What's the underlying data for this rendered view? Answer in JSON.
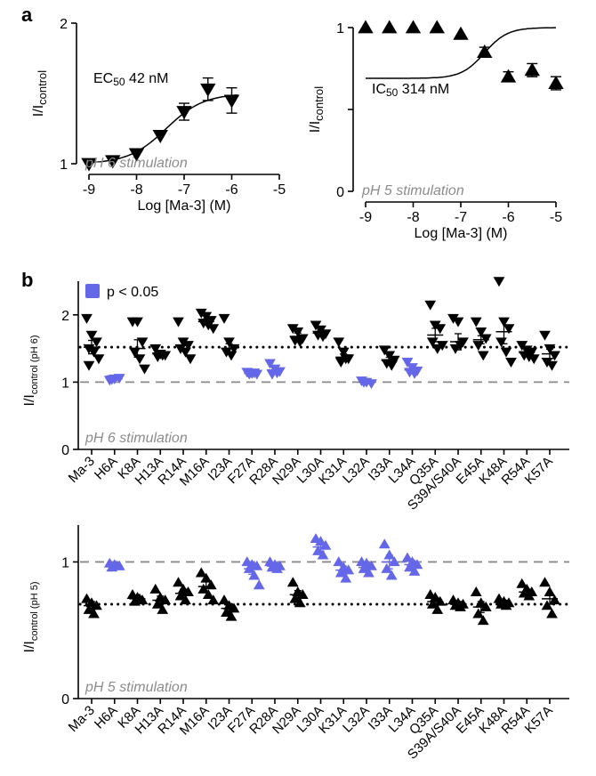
{
  "panel_a_letter": "a",
  "panel_b_letter": "b",
  "colors": {
    "significant": "#6468e8",
    "normal": "#000000",
    "stimulation_text": "#8c8c8c",
    "dashed_line": "#8a8a8a"
  },
  "legend": {
    "text": "p < 0.05",
    "swatch_color": "#6468e8"
  },
  "chart_data": [
    {
      "id": "a-left",
      "type": "scatter",
      "marker": "triangle-down",
      "xlabel": "Log [Ma-3] (M)",
      "ylabel": "I/I",
      "ylabel_sub": "control",
      "xlim": [
        -9,
        -5
      ],
      "ylim": [
        1,
        2
      ],
      "xticks": [
        -9,
        -8,
        -7,
        -6,
        -5
      ],
      "xticklabels": [
        "-9",
        "-8",
        "-7",
        "-6",
        "-5"
      ],
      "yticks": [
        1,
        2
      ],
      "yticklabels": [
        "1",
        "2"
      ],
      "annotation_prefix": "EC",
      "annotation_sub": "50",
      "annotation_value": " 42 nM",
      "stimulation": "pH 6 stimulation",
      "points": [
        {
          "x": -9,
          "y": 1.0,
          "err": 0.01
        },
        {
          "x": -8.5,
          "y": 1.02,
          "err": 0.01
        },
        {
          "x": -8,
          "y": 1.07,
          "err": 0.01
        },
        {
          "x": -7.5,
          "y": 1.2,
          "err": 0.02
        },
        {
          "x": -7,
          "y": 1.37,
          "err": 0.06
        },
        {
          "x": -6.5,
          "y": 1.53,
          "err": 0.08
        },
        {
          "x": -6,
          "y": 1.45,
          "err": 0.09
        }
      ],
      "fit": {
        "bottom": 1.0,
        "top": 1.5,
        "log_ec50": -7.377,
        "hill": 1.1
      }
    },
    {
      "id": "a-right",
      "type": "scatter",
      "marker": "triangle-up",
      "xlabel": "Log [Ma-3] (M)",
      "ylabel": "I/I",
      "ylabel_sub": "control",
      "xlim": [
        -9,
        -5
      ],
      "ylim": [
        0,
        1
      ],
      "xticks": [
        -9,
        -8,
        -7,
        -6,
        -5
      ],
      "xticklabels": [
        "-9",
        "-8",
        "-7",
        "-6",
        "-5"
      ],
      "yticks": [
        0,
        0.5,
        1
      ],
      "yticklabels": [
        "0",
        "",
        "1"
      ],
      "annotation_prefix": "IC",
      "annotation_sub": "50",
      "annotation_value": " 314 nM",
      "stimulation": "pH 5 stimulation",
      "points": [
        {
          "x": -9,
          "y": 1.0,
          "err": 0.01
        },
        {
          "x": -8.5,
          "y": 1.0,
          "err": 0.01
        },
        {
          "x": -8,
          "y": 1.0,
          "err": 0.01
        },
        {
          "x": -7.5,
          "y": 1.0,
          "err": 0.01
        },
        {
          "x": -7,
          "y": 0.96,
          "err": 0.02
        },
        {
          "x": -6.5,
          "y": 0.85,
          "err": 0.03
        },
        {
          "x": -6,
          "y": 0.7,
          "err": 0.03
        },
        {
          "x": -5.5,
          "y": 0.74,
          "err": 0.04
        },
        {
          "x": -5,
          "y": 0.66,
          "err": 0.04
        }
      ],
      "fit": {
        "bottom": 0.69,
        "top": 1.0,
        "log_ec50": -6.503,
        "hill": 1.8
      }
    },
    {
      "id": "b-top",
      "type": "scatter",
      "marker": "triangle-down",
      "ylabel": "I/I",
      "ylabel_sub": "control (pH 6)",
      "ylim": [
        0,
        2.5
      ],
      "yticks": [
        0,
        1,
        2
      ],
      "yticklabels": [
        "0",
        "1",
        "2"
      ],
      "reference_dotted": 1.52,
      "reference_dashed": 1.0,
      "stimulation": "pH 6 stimulation",
      "categories": [
        "Ma-3",
        "H6A",
        "K8A",
        "H13A",
        "R14A",
        "M16A",
        "I23A",
        "F27A",
        "R28A",
        "N29A",
        "L30A",
        "K31A",
        "L32A",
        "I33A",
        "L34A",
        "Q35A",
        "S39A/S40A",
        "E45A",
        "K48A",
        "R54A",
        "K57A"
      ],
      "significant": [
        false,
        true,
        false,
        false,
        false,
        false,
        false,
        true,
        true,
        false,
        false,
        false,
        true,
        false,
        true,
        false,
        false,
        false,
        false,
        false,
        false
      ],
      "means": [
        1.52,
        1.05,
        1.5,
        1.42,
        1.55,
        1.9,
        1.5,
        1.13,
        1.18,
        1.68,
        1.73,
        1.37,
        1.0,
        1.32,
        1.18,
        1.7,
        1.6,
        1.63,
        1.75,
        1.44,
        1.42
      ],
      "sems": [
        0.1,
        0.02,
        0.13,
        0.04,
        0.07,
        0.04,
        0.07,
        0.02,
        0.03,
        0.05,
        0.04,
        0.05,
        0.02,
        0.05,
        0.04,
        0.1,
        0.12,
        0.06,
        0.18,
        0.04,
        0.07
      ],
      "points": [
        [
          1.95,
          1.7,
          1.6,
          1.5,
          1.45,
          1.35,
          1.25
        ],
        [
          1.03,
          1.05,
          1.06,
          1.04
        ],
        [
          1.9,
          1.9,
          1.6,
          1.45,
          1.35,
          1.2
        ],
        [
          1.5,
          1.42,
          1.4,
          1.38,
          1.4
        ],
        [
          1.9,
          1.6,
          1.55,
          1.5,
          1.45,
          1.35
        ],
        [
          2.03,
          1.98,
          1.92,
          1.88,
          1.85,
          1.8
        ],
        [
          1.95,
          1.6,
          1.5,
          1.45,
          1.4
        ],
        [
          1.15,
          1.13,
          1.12,
          1.12,
          1.14
        ],
        [
          1.28,
          1.2,
          1.16,
          1.12,
          1.14
        ],
        [
          1.8,
          1.75,
          1.65,
          1.62,
          1.6
        ],
        [
          1.85,
          1.78,
          1.72,
          1.7,
          1.68
        ],
        [
          1.6,
          1.45,
          1.35,
          1.3,
          1.35
        ],
        [
          1.02,
          1.0,
          0.98,
          1.0
        ],
        [
          1.48,
          1.4,
          1.33,
          1.28,
          1.25
        ],
        [
          1.3,
          1.22,
          1.17,
          1.15,
          1.13
        ],
        [
          2.15,
          1.85,
          1.8,
          1.6,
          1.5,
          1.55
        ],
        [
          1.95,
          1.9,
          1.6,
          1.5,
          1.55
        ],
        [
          1.9,
          1.75,
          1.65,
          1.55,
          1.4
        ],
        [
          2.5,
          1.9,
          1.8,
          1.6,
          1.45,
          1.3
        ],
        [
          1.55,
          1.48,
          1.45,
          1.4,
          1.38,
          1.35
        ],
        [
          1.7,
          1.5,
          1.4,
          1.3,
          1.25
        ]
      ]
    },
    {
      "id": "b-bottom",
      "type": "scatter",
      "marker": "triangle-up",
      "ylabel": "I/I",
      "ylabel_sub": "control (pH 5)",
      "ylim": [
        0,
        1.27
      ],
      "yticks": [
        0,
        1
      ],
      "yticklabels": [
        "0",
        "1"
      ],
      "reference_dotted": 0.69,
      "reference_dashed": 1.0,
      "stimulation": "pH 5 stimulation",
      "categories": [
        "Ma-3",
        "H6A",
        "K8A",
        "H13A",
        "R14A",
        "M16A",
        "I23A",
        "F27A",
        "R28A",
        "N29A",
        "L30A",
        "K31A",
        "L32A",
        "I33A",
        "L34A",
        "Q35A",
        "S39A/S40A",
        "E45A",
        "K48A",
        "R54A",
        "K57A"
      ],
      "significant": [
        false,
        true,
        false,
        false,
        false,
        false,
        false,
        true,
        true,
        false,
        true,
        true,
        true,
        true,
        true,
        false,
        false,
        false,
        false,
        false,
        false
      ],
      "means": [
        0.68,
        0.97,
        0.73,
        0.72,
        0.77,
        0.82,
        0.66,
        0.95,
        0.97,
        0.76,
        1.11,
        0.94,
        0.96,
        1.0,
        0.98,
        0.71,
        0.69,
        0.67,
        0.7,
        0.78,
        0.73
      ],
      "sems": [
        0.03,
        0.01,
        0.02,
        0.03,
        0.03,
        0.04,
        0.03,
        0.04,
        0.02,
        0.03,
        0.03,
        0.03,
        0.03,
        0.05,
        0.03,
        0.03,
        0.02,
        0.04,
        0.02,
        0.02,
        0.04
      ],
      "points": [
        [
          0.73,
          0.7,
          0.68,
          0.65,
          0.62
        ],
        [
          0.99,
          0.98,
          0.97,
          0.96,
          0.97
        ],
        [
          0.76,
          0.74,
          0.72,
          0.71,
          0.73
        ],
        [
          0.8,
          0.74,
          0.72,
          0.69,
          0.65
        ],
        [
          0.85,
          0.8,
          0.78,
          0.75,
          0.72
        ],
        [
          0.92,
          0.88,
          0.83,
          0.8,
          0.76,
          0.72
        ],
        [
          0.72,
          0.68,
          0.66,
          0.63,
          0.6
        ],
        [
          1.0,
          0.98,
          0.97,
          0.95,
          0.9,
          0.83
        ],
        [
          1.0,
          0.98,
          0.97,
          0.96,
          0.95
        ],
        [
          0.85,
          0.78,
          0.76,
          0.73,
          0.7
        ],
        [
          1.17,
          1.15,
          1.12,
          1.08,
          1.05
        ],
        [
          1.0,
          0.96,
          0.94,
          0.92,
          0.88
        ],
        [
          1.0,
          0.99,
          0.97,
          0.95,
          0.92
        ],
        [
          1.13,
          1.05,
          1.0,
          0.95,
          0.9
        ],
        [
          1.03,
          1.0,
          0.98,
          0.96,
          0.93
        ],
        [
          0.76,
          0.74,
          0.71,
          0.69,
          0.65
        ],
        [
          0.72,
          0.7,
          0.69,
          0.68,
          0.67
        ],
        [
          0.78,
          0.7,
          0.67,
          0.62,
          0.57
        ],
        [
          0.73,
          0.71,
          0.7,
          0.69,
          0.68
        ],
        [
          0.84,
          0.8,
          0.78,
          0.77,
          0.75
        ],
        [
          0.85,
          0.78,
          0.72,
          0.68,
          0.62
        ]
      ]
    }
  ]
}
